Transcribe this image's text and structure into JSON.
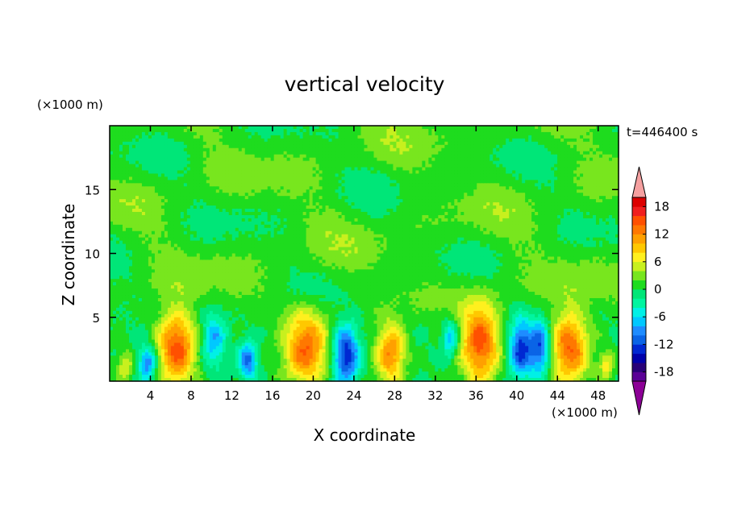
{
  "chart_data": {
    "type": "heatmap",
    "title": "vertical velocity",
    "xlabel": "X coordinate",
    "ylabel": "Z coordinate",
    "x_unit": "(×1000 m)",
    "y_unit": "(×1000 m)",
    "time_label": "t=446400 s",
    "xlim": [
      0,
      50
    ],
    "ylim": [
      0,
      20
    ],
    "x_ticks": [
      4,
      8,
      12,
      16,
      20,
      24,
      28,
      32,
      36,
      40,
      44,
      48
    ],
    "x_tick_labels": [
      "4",
      "8",
      "12",
      "16",
      "20",
      "24",
      "28",
      "32",
      "36",
      "40",
      "44",
      "48"
    ],
    "y_ticks": [
      5,
      10,
      15
    ],
    "y_tick_labels": [
      "5",
      "10",
      "15"
    ],
    "colorbar": {
      "levels": [
        -20,
        -18,
        -16,
        -14,
        -12,
        -10,
        -8,
        -6,
        -4,
        -2,
        0,
        2,
        4,
        6,
        8,
        10,
        12,
        14,
        16,
        18,
        20
      ],
      "labeled": [
        -18,
        -12,
        -6,
        0,
        6,
        12,
        18
      ],
      "labels": [
        "-18",
        "-12",
        "-6",
        "0",
        "6",
        "12",
        "18"
      ],
      "colors": [
        "#5a0096",
        "#280078",
        "#0000aa",
        "#0028d2",
        "#0a64e6",
        "#1e8cff",
        "#00c8ff",
        "#00f0e6",
        "#00f5a0",
        "#00e678",
        "#1edc1e",
        "#78e61e",
        "#c8f01e",
        "#fff01e",
        "#ffc800",
        "#ffa000",
        "#ff7800",
        "#ff5000",
        "#f01e1e",
        "#dc0000"
      ],
      "under_color": "#8c0096",
      "over_color": "#f5a0a0"
    },
    "cells": [
      {
        "xc": 1.5,
        "zc": 1.2,
        "sx": 0.6,
        "sz": 0.8,
        "amp": 6
      },
      {
        "xc": 3.7,
        "zc": 1.4,
        "sx": 0.6,
        "sz": 0.9,
        "amp": -11
      },
      {
        "xc": 6.6,
        "zc": 2.6,
        "sx": 1.3,
        "sz": 2.0,
        "amp": 15
      },
      {
        "xc": 10.2,
        "zc": 3.2,
        "sx": 0.8,
        "sz": 1.4,
        "amp": -8
      },
      {
        "xc": 13.6,
        "zc": 1.6,
        "sx": 0.6,
        "sz": 1.0,
        "amp": -11
      },
      {
        "xc": 19.3,
        "zc": 2.6,
        "sx": 1.5,
        "sz": 2.0,
        "amp": 14
      },
      {
        "xc": 23.2,
        "zc": 2.0,
        "sx": 0.9,
        "sz": 1.6,
        "amp": -14
      },
      {
        "xc": 27.6,
        "zc": 2.2,
        "sx": 1.0,
        "sz": 1.7,
        "amp": 12
      },
      {
        "xc": 33.5,
        "zc": 3.3,
        "sx": 0.5,
        "sz": 1.0,
        "amp": -8
      },
      {
        "xc": 36.4,
        "zc": 3.0,
        "sx": 1.3,
        "sz": 2.2,
        "amp": 15
      },
      {
        "xc": 40.4,
        "zc": 2.6,
        "sx": 0.8,
        "sz": 1.6,
        "amp": -13
      },
      {
        "xc": 42.3,
        "zc": 2.6,
        "sx": 0.7,
        "sz": 1.5,
        "amp": -12
      },
      {
        "xc": 45.2,
        "zc": 2.6,
        "sx": 1.3,
        "sz": 2.0,
        "amp": 14
      },
      {
        "xc": 48.8,
        "zc": 1.2,
        "sx": 0.5,
        "sz": 0.8,
        "amp": 7
      }
    ],
    "upper_field": "near-zero weak updrafts/downdrafts (0 to 2) above 5 km",
    "grid": false
  }
}
